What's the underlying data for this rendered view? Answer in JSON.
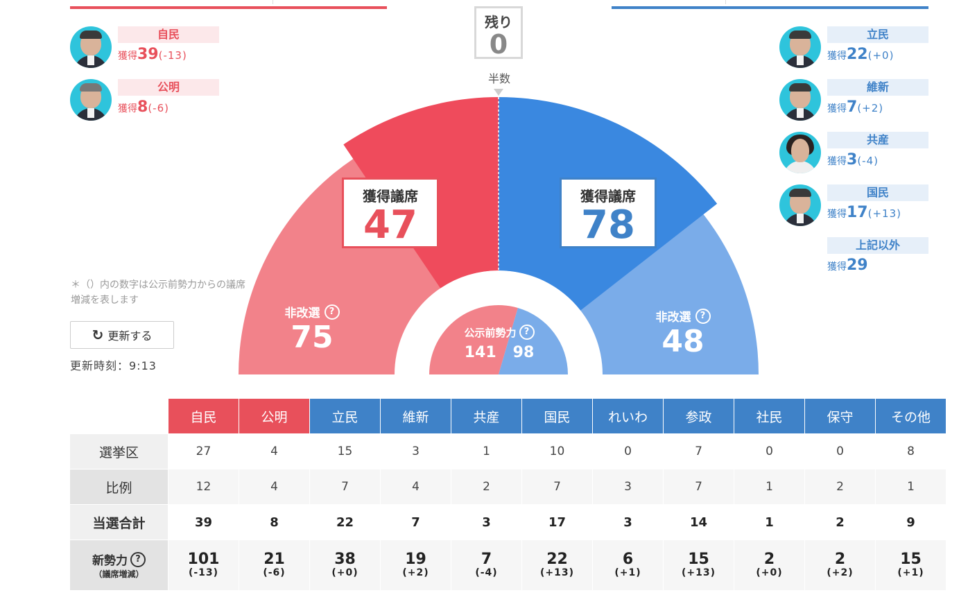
{
  "remaining": {
    "label": "残り",
    "value": "0"
  },
  "half_label": "半数",
  "left_parties": [
    {
      "name": "自民",
      "seats_prefix": "獲得",
      "seats": "39",
      "delta": "(-13)"
    },
    {
      "name": "公明",
      "seats_prefix": "獲得",
      "seats": "8",
      "delta": "(-6)"
    }
  ],
  "right_parties": [
    {
      "name": "立民",
      "seats_prefix": "獲得",
      "seats": "22",
      "delta": "(+0)"
    },
    {
      "name": "維新",
      "seats_prefix": "獲得",
      "seats": "7",
      "delta": "(+2)"
    },
    {
      "name": "共産",
      "seats_prefix": "獲得",
      "seats": "3",
      "delta": "(-4)"
    },
    {
      "name": "国民",
      "seats_prefix": "獲得",
      "seats": "17",
      "delta": "(+13)"
    },
    {
      "name": "上記以外",
      "seats_prefix": "獲得",
      "seats": "29",
      "delta": ""
    }
  ],
  "chart": {
    "ruling_won_label": "獲得議席",
    "ruling_won": "47",
    "opposition_won_label": "獲得議席",
    "opposition_won": "78",
    "ruling_nonreelect_label": "非改選",
    "ruling_nonreelect": "75",
    "opposition_nonreelect_label": "非改選",
    "opposition_nonreelect": "48",
    "pre_label": "公示前勢力",
    "pre_ruling": "141",
    "pre_opposition": "98",
    "colors": {
      "red_dark": "#ef4b5c",
      "red_light": "#f2828a",
      "blue_dark": "#3a88e0",
      "blue_light": "#7aace9"
    }
  },
  "note": "＊（）内の数字は公示前勢力からの議席増減を表します",
  "refresh_label": "更新する",
  "update_time": "更新時刻：9:13",
  "table": {
    "headers": [
      "自民",
      "公明",
      "立民",
      "維新",
      "共産",
      "国民",
      "れいわ",
      "参政",
      "社民",
      "保守",
      "その他"
    ],
    "header_colors": [
      "red",
      "red",
      "blue",
      "blue",
      "blue",
      "blue",
      "blue",
      "blue",
      "blue",
      "blue",
      "blue"
    ],
    "rows": [
      {
        "label": "選挙区",
        "values": [
          "27",
          "4",
          "15",
          "3",
          "1",
          "10",
          "0",
          "7",
          "0",
          "0",
          "8"
        ]
      },
      {
        "label": "比例",
        "values": [
          "12",
          "4",
          "7",
          "4",
          "2",
          "7",
          "3",
          "7",
          "1",
          "2",
          "1"
        ]
      },
      {
        "label": "当選合計",
        "values": [
          "39",
          "8",
          "22",
          "7",
          "3",
          "17",
          "3",
          "14",
          "1",
          "2",
          "9"
        ]
      }
    ],
    "new_force": {
      "label": "新勢力",
      "sub_label": "（議席増減）",
      "values": [
        "101",
        "21",
        "38",
        "19",
        "7",
        "22",
        "6",
        "15",
        "2",
        "2",
        "15"
      ],
      "deltas": [
        "(-13)",
        "(-6)",
        "(+0)",
        "(+2)",
        "(-4)",
        "(+13)",
        "(+1)",
        "(+13)",
        "(+0)",
        "(+2)",
        "(+1)"
      ]
    }
  }
}
